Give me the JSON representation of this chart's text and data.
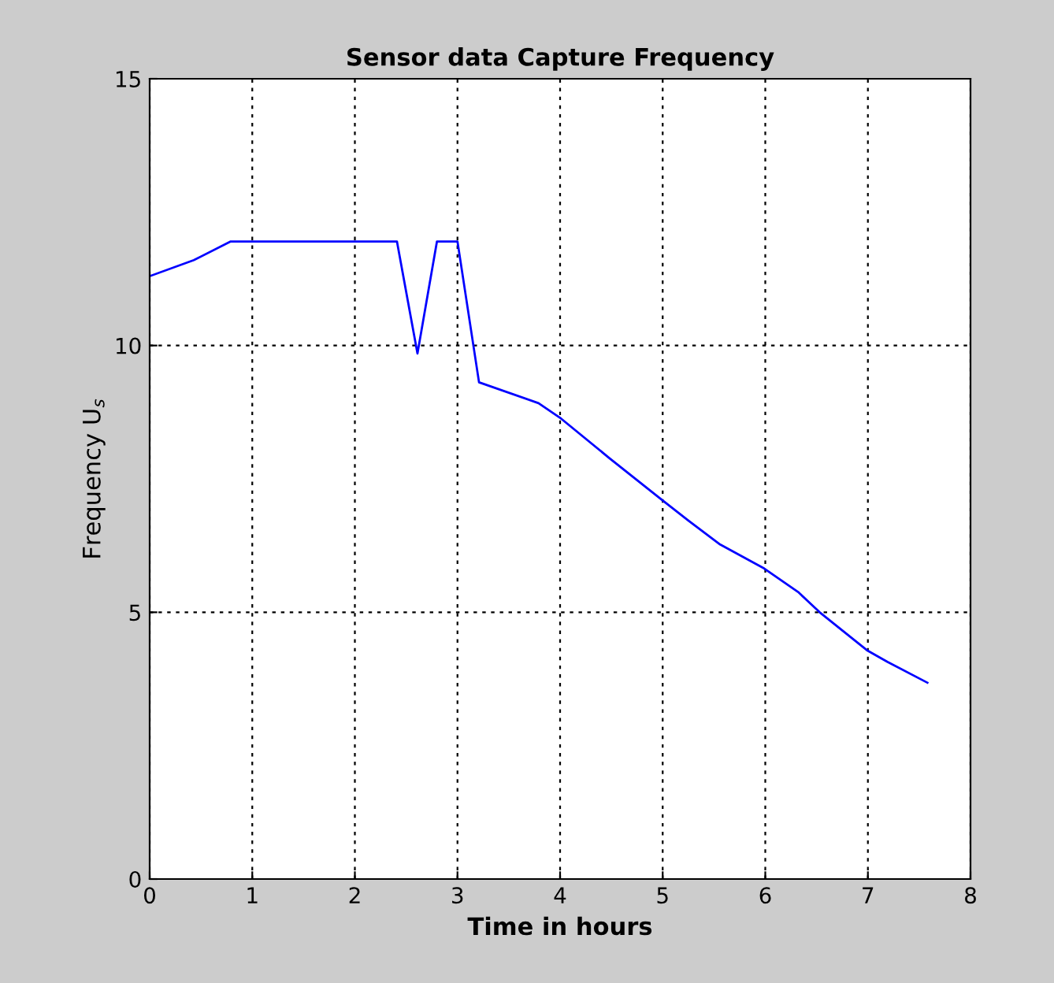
{
  "chart_data": {
    "type": "line",
    "title": "Sensor data Capture Frequency",
    "xlabel": "Time in hours",
    "ylabel": "Frequency U$_{s}$",
    "series": [
      {
        "color": "#0000ff",
        "x": [
          0,
          0.43,
          0.79,
          2.41,
          2.61,
          2.8,
          3.0,
          3.21,
          3.79,
          4.01,
          4.48,
          4.99,
          5.25,
          5.56,
          5.99,
          6.32,
          6.53,
          6.99,
          7.19,
          7.58
        ],
        "values": [
          11.3,
          11.6,
          11.95,
          11.95,
          9.85,
          11.95,
          11.95,
          9.31,
          8.92,
          8.63,
          7.89,
          7.11,
          6.72,
          6.27,
          5.82,
          5.38,
          5.0,
          4.29,
          4.07,
          3.68
        ]
      }
    ],
    "xlim": [
      0,
      8
    ],
    "ylim": [
      0,
      15
    ],
    "xticks": [
      0,
      1,
      2,
      3,
      4,
      5,
      6,
      7,
      8
    ],
    "yticks": [
      0,
      5,
      10,
      15
    ],
    "grid": true,
    "line_style": "solid",
    "marker": "none",
    "legend": false
  }
}
